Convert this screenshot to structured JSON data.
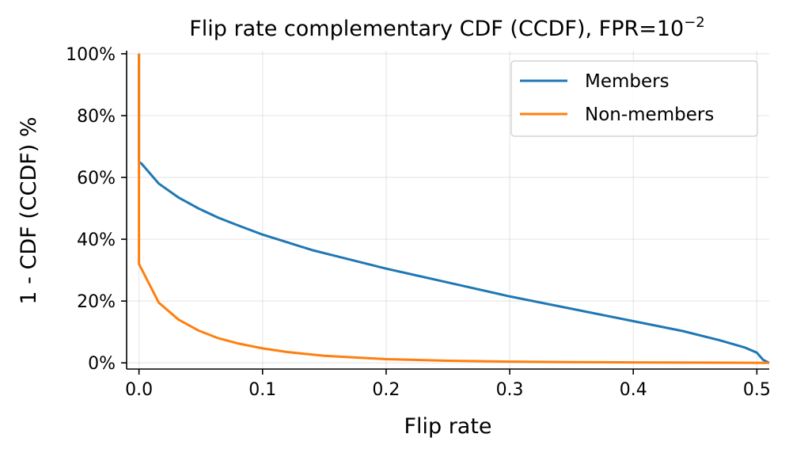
{
  "chart_data": {
    "type": "line",
    "title": "Flip rate complementary CDF (CCDF), FPR=10",
    "title_exponent": "−2",
    "xlabel": "Flip rate",
    "ylabel": "1 - CDF (CCDF) %",
    "xlim": [
      -0.01,
      0.51
    ],
    "ylim": [
      -2,
      101
    ],
    "x_ticks": [
      0.0,
      0.1,
      0.2,
      0.3,
      0.4,
      0.5
    ],
    "x_tick_labels": [
      "0.0",
      "0.1",
      "0.2",
      "0.3",
      "0.4",
      "0.5"
    ],
    "y_ticks": [
      0,
      20,
      40,
      60,
      80,
      100
    ],
    "y_tick_labels": [
      "0%",
      "20%",
      "40%",
      "60%",
      "80%",
      "100%"
    ],
    "grid": true,
    "legend_position": "top-right",
    "series": [
      {
        "name": "Members",
        "color": "#1f77b4",
        "x": [
          0.0,
          0.0,
          0.002,
          0.016,
          0.032,
          0.048,
          0.064,
          0.08,
          0.1,
          0.12,
          0.14,
          0.16,
          0.2,
          0.25,
          0.3,
          0.35,
          0.4,
          0.44,
          0.47,
          0.49,
          0.5,
          0.505,
          0.51
        ],
        "y": [
          100,
          65,
          64.5,
          58,
          53.5,
          50,
          47,
          44.5,
          41.5,
          39,
          36.5,
          34.5,
          30.5,
          26,
          21.5,
          17.5,
          13.5,
          10.3,
          7.3,
          5,
          3.3,
          1,
          0
        ]
      },
      {
        "name": "Non-members",
        "color": "#ff7f0e",
        "x": [
          0.0,
          0.0,
          0.016,
          0.032,
          0.048,
          0.064,
          0.08,
          0.1,
          0.12,
          0.15,
          0.2,
          0.25,
          0.3,
          0.35,
          0.4,
          0.45,
          0.5,
          0.51
        ],
        "y": [
          100,
          32,
          19.5,
          14,
          10.5,
          8,
          6.3,
          4.7,
          3.5,
          2.3,
          1.2,
          0.7,
          0.4,
          0.25,
          0.15,
          0.08,
          0.03,
          0.0
        ]
      }
    ]
  }
}
